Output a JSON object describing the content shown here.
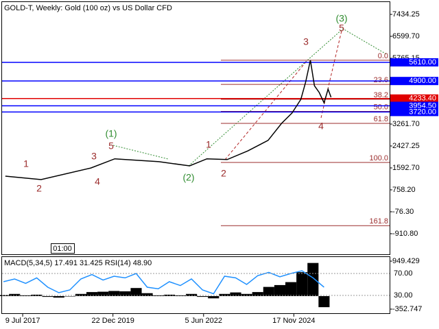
{
  "chart_data": [
    {
      "type": "line",
      "title": "GOLD-T, Weekly:  Gold (100 oz) vs US Dollar CFD",
      "time_label": "01:00",
      "x": [
        2017.05,
        2018.02,
        2019.37,
        2020.02,
        2021.22,
        2022.05,
        2022.52,
        2023.07,
        2023.63,
        2024.18,
        2024.55,
        2024.83,
        2025.07,
        2025.2,
        2025.33,
        2025.44,
        2025.57,
        2025.7,
        2025.81,
        2025.89
      ],
      "values": [
        1280,
        1150,
        1590,
        1940,
        1830,
        1670,
        1940,
        1910,
        2240,
        2640,
        3290,
        3680,
        4200,
        4850,
        5690,
        4720,
        4460,
        4070,
        4590,
        4280
      ],
      "color": "#000000",
      "xlim": [
        2016.96,
        2027.48
      ],
      "ylim": [
        -1720,
        7982
      ],
      "yticks": [
        7434.25,
        {
          "value": 6599.7,
          "label": "6599.70"
        },
        5765.15,
        {
          "value": 3261.7,
          "label": "3261.70"
        },
        2427.25,
        {
          "value": 1592.7,
          "label": "1592.70"
        },
        {
          "value": 758.2,
          "label": "758.20"
        },
        {
          "value": -76.3,
          "label": "-76.30"
        },
        {
          "value": -910.8,
          "label": "-910.80"
        }
      ],
      "levels": [
        {
          "value": 5610,
          "label": "5610.00",
          "color": "#0000ff"
        },
        {
          "value": 4900,
          "label": "4900.00",
          "color": "#0000ff"
        },
        {
          "value": 4233.4,
          "label": "4233.40",
          "color": "#e00000"
        },
        {
          "value": 3954.5,
          "label": "3954.50",
          "color": "#0000ff"
        },
        {
          "value": 3720,
          "label": "3720.00",
          "color": "#0000ff"
        }
      ],
      "fib_color": "#9b2b2b",
      "fib_levels": [
        {
          "price": 5690,
          "ratio": {
            "value": 0,
            "label": "0.0"
          }
        },
        {
          "price": 4772,
          "ratio": 23.6
        },
        {
          "price": 4204,
          "ratio": 38.2
        },
        {
          "price": 3745,
          "ratio": {
            "value": 50,
            "label": "50.0"
          }
        },
        {
          "price": 3286,
          "ratio": 61.8
        },
        {
          "price": 1800,
          "ratio": {
            "value": 100,
            "label": "100.0"
          }
        },
        {
          "price": -604,
          "ratio": 161.8
        }
      ],
      "waves": [
        "1",
        "2",
        "3",
        "4",
        "5",
        "(1)",
        "(2)",
        "1",
        "2",
        "3",
        "4",
        "5",
        "(3)"
      ]
    },
    {
      "type": "line",
      "title": "MACD(5,34,5) 17.491 31.425 RSI(14) 48.90",
      "x": [
        2017.0,
        2017.3,
        2017.6,
        2017.9,
        2018.2,
        2018.5,
        2018.8,
        2019.1,
        2019.4,
        2019.7,
        2020.0,
        2020.3,
        2020.6,
        2020.9,
        2021.2,
        2021.5,
        2021.8,
        2022.1,
        2022.4,
        2022.7,
        2023.0,
        2023.3,
        2023.6,
        2023.9,
        2024.2,
        2024.5,
        2024.8,
        2025.1,
        2025.4,
        2025.7
      ],
      "series": [
        {
          "name": "MACD(5,34,5)",
          "color": "#000000",
          "axis": "y2",
          "values": [
            30,
            60,
            20,
            40,
            -20,
            -40,
            -10,
            60,
            110,
            120,
            140,
            130,
            220,
            80,
            20,
            40,
            20,
            60,
            -20,
            -60,
            60,
            100,
            60,
            110,
            250,
            300,
            380,
            650,
            900,
            -300
          ]
        },
        {
          "name": "RSI(14)",
          "color": "#1e90ff",
          "values": [
            55,
            60,
            52,
            62,
            45,
            35,
            40,
            60,
            68,
            58,
            65,
            62,
            70,
            45,
            42,
            55,
            48,
            60,
            40,
            33,
            65,
            62,
            50,
            66,
            72,
            64,
            70,
            75,
            62,
            45
          ]
        }
      ],
      "xlim": [
        2016.96,
        2027.48
      ],
      "xticks": [
        {
          "value": 2017.52,
          "label": "9 Jul 2017"
        },
        {
          "value": 2019.97,
          "label": "22 Dec 2019"
        },
        {
          "value": 2022.43,
          "label": "5 Jun 2022"
        },
        {
          "value": 2024.88,
          "label": "17 Nov 2024"
        }
      ],
      "ylim": [
        0,
        100
      ],
      "yticks": [
        {
          "value": 70,
          "label": "70.00"
        },
        {
          "value": 30,
          "label": "30.00"
        }
      ],
      "y2lim": [
        -352.747,
        949.429
      ],
      "y2ticks": [
        949.429,
        -352.747
      ]
    }
  ]
}
